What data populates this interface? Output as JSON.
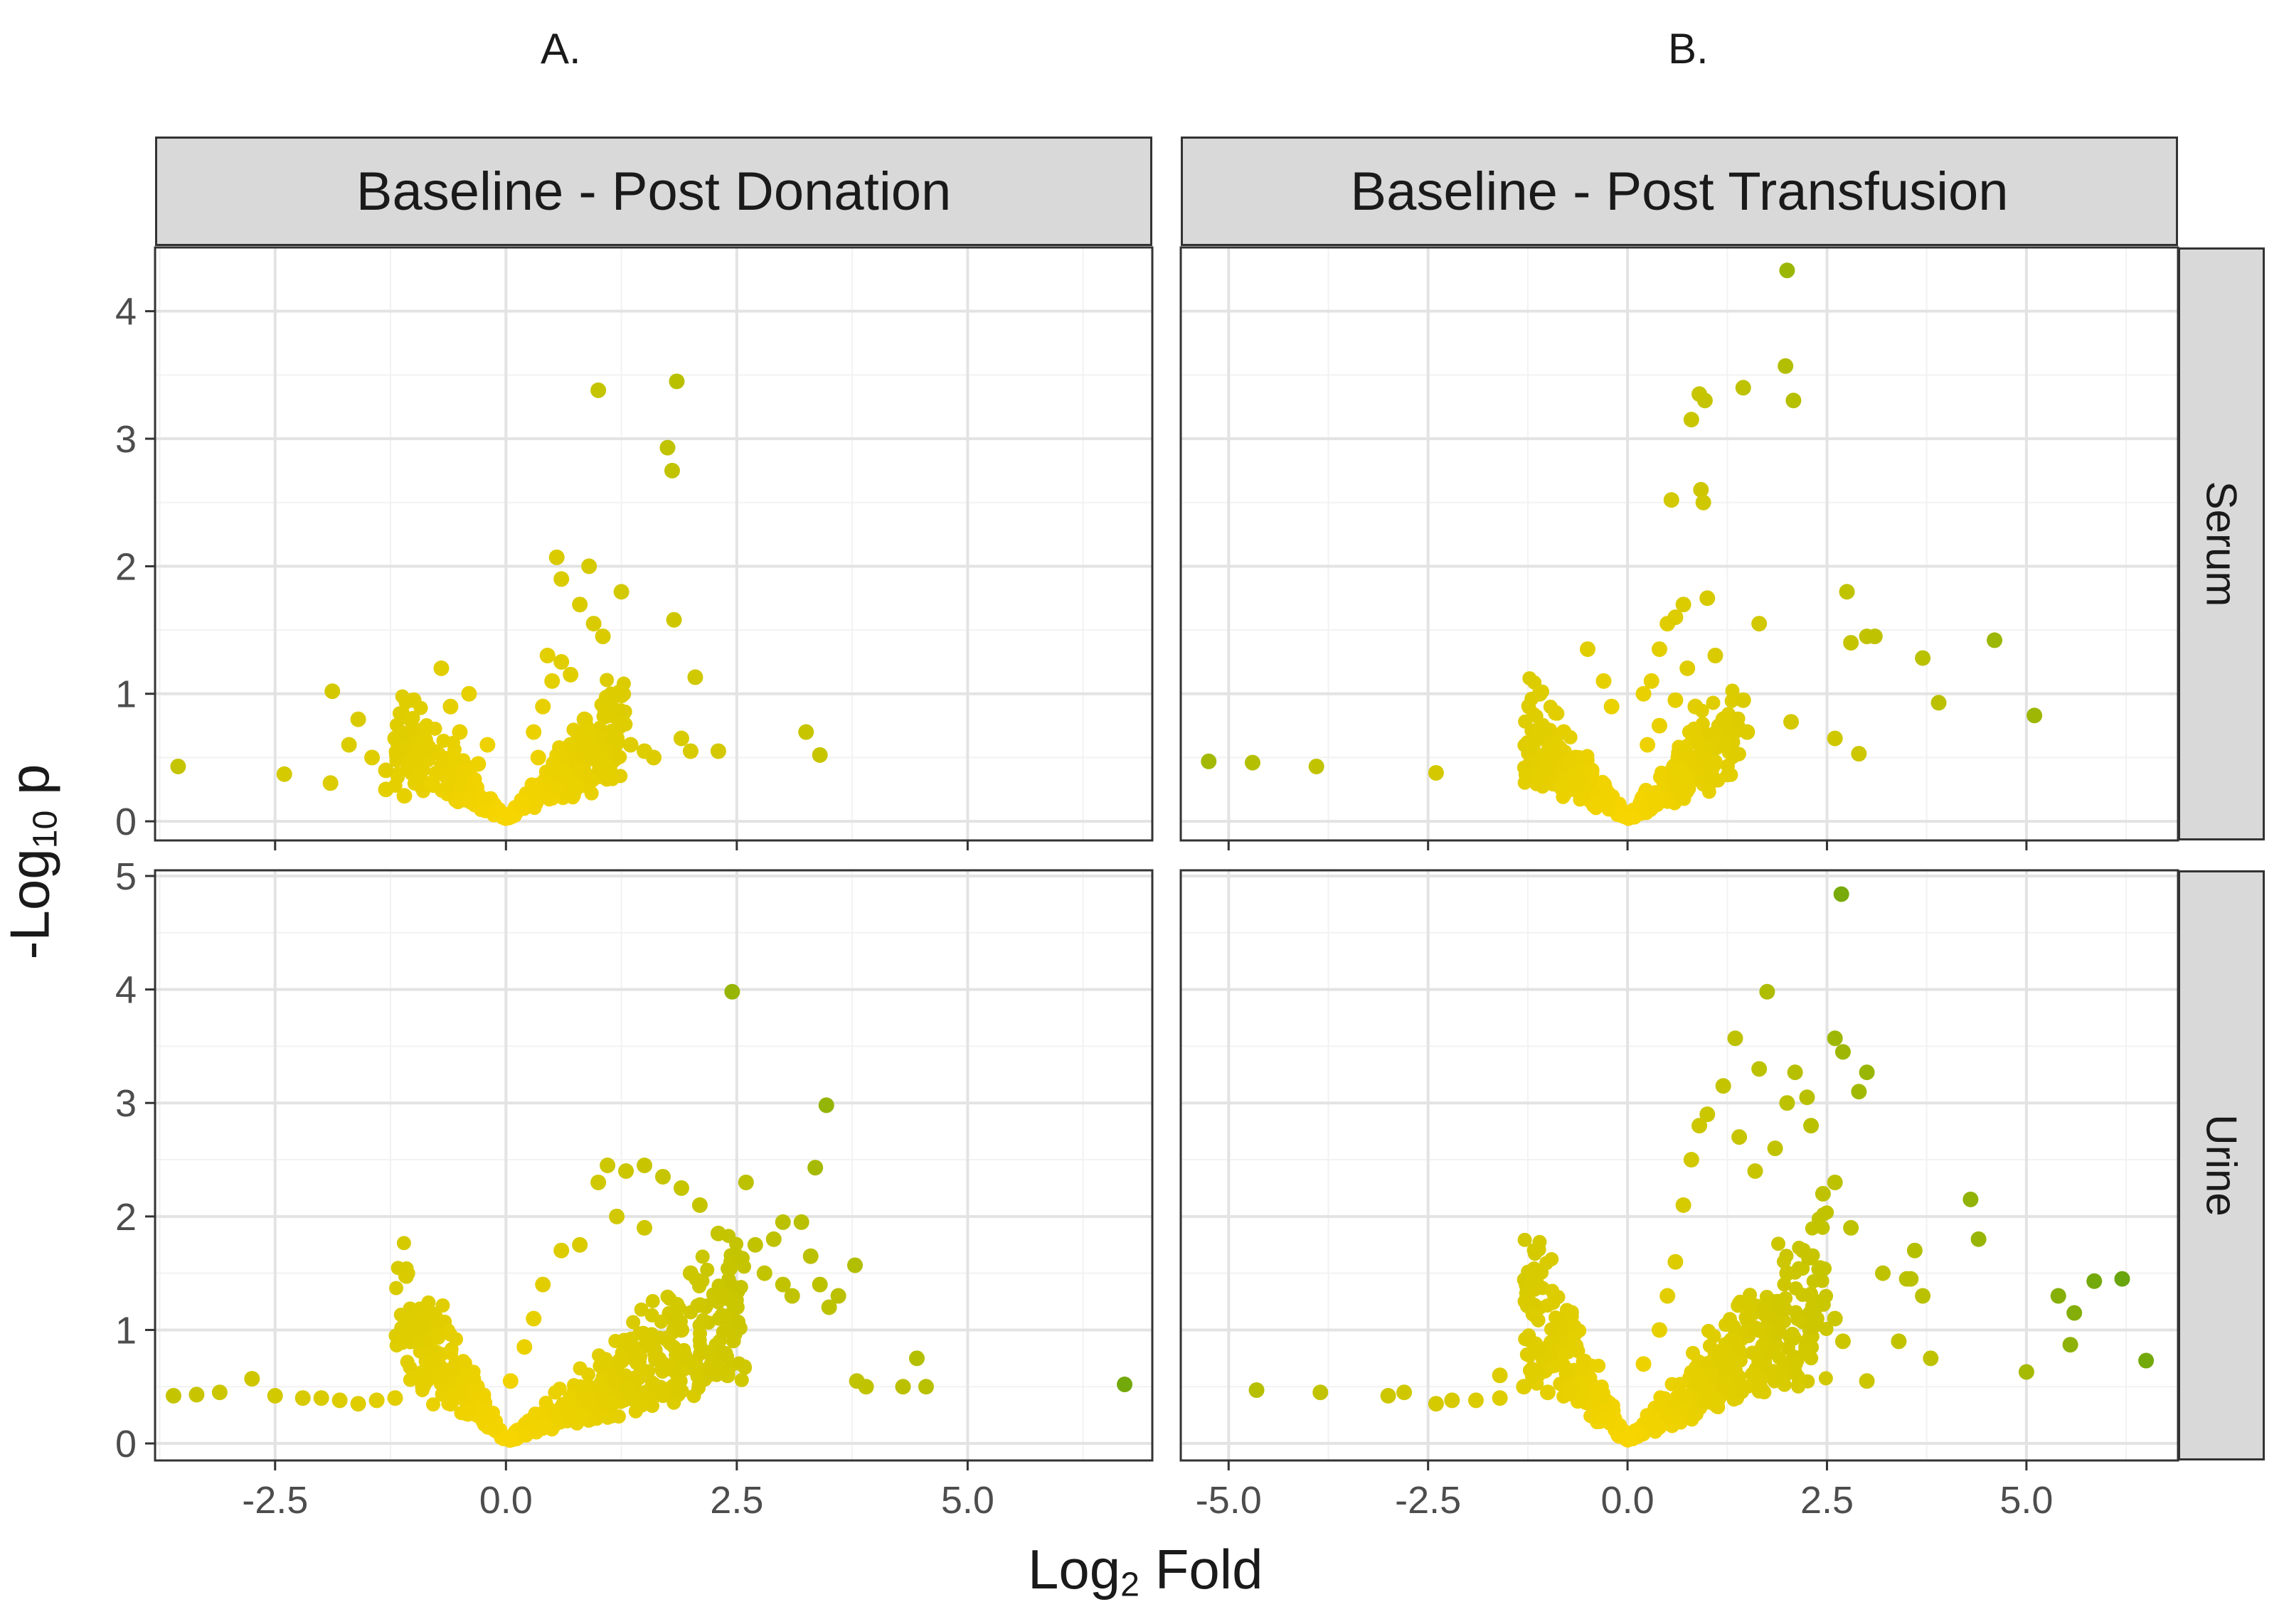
{
  "figure": {
    "panel_labels": [
      "A.",
      "B."
    ],
    "x_title_main": "Log",
    "x_title_sub": "2",
    "x_title_rest": " Fold",
    "y_title_main": "-Log",
    "y_title_sub": "10",
    "y_title_rest": " p"
  },
  "colors": {
    "low": "#f7d500",
    "mid": "#b8c000",
    "high": "#1a8a1a",
    "grid_major": "#e3e3e3",
    "grid_minor": "#f2f2f2",
    "border": "#333333",
    "tick_text": "#4d4d4d"
  },
  "chart_data": [
    {
      "type": "scatter",
      "id": "A-serum",
      "column_title": "Baseline - Post Donation",
      "row_title": "Serum",
      "xlabel": "Log2 Fold",
      "ylabel": "-Log10 p",
      "xlim": [
        -3.8,
        7.0
      ],
      "ylim": [
        -0.15,
        4.5
      ],
      "x_ticks": [
        -2.5,
        0.0,
        2.5,
        5.0
      ],
      "x_tick_labels": [
        "-2.5",
        "0.0",
        "2.5",
        "5.0"
      ],
      "y_ticks": [
        0,
        1,
        2,
        3,
        4
      ],
      "y_tick_labels": [
        "0",
        "1",
        "2",
        "3",
        "4"
      ],
      "x_tick_labels_visible": false,
      "points": [
        [
          -3.55,
          0.43
        ],
        [
          -2.4,
          0.37
        ],
        [
          -1.88,
          1.02
        ],
        [
          -1.9,
          0.3
        ],
        [
          -1.6,
          0.8
        ],
        [
          -1.3,
          0.4
        ],
        [
          -1.2,
          0.65
        ],
        [
          -1.0,
          0.95
        ],
        [
          -0.9,
          0.55
        ],
        [
          -0.8,
          0.3
        ],
        [
          -0.7,
          1.2
        ],
        [
          -0.6,
          0.9
        ],
        [
          -0.5,
          0.7
        ],
        [
          -0.4,
          1.0
        ],
        [
          -0.3,
          0.45
        ],
        [
          -0.2,
          0.6
        ],
        [
          -1.3,
          0.25
        ],
        [
          -1.1,
          0.2
        ],
        [
          -0.95,
          0.35
        ],
        [
          0.3,
          0.7
        ],
        [
          0.45,
          1.3
        ],
        [
          0.55,
          2.07
        ],
        [
          0.6,
          1.9
        ],
        [
          0.8,
          1.7
        ],
        [
          0.9,
          2.0
        ],
        [
          0.95,
          1.55
        ],
        [
          1.0,
          3.38
        ],
        [
          1.05,
          1.45
        ],
        [
          1.25,
          1.8
        ],
        [
          1.35,
          0.6
        ],
        [
          1.5,
          0.55
        ],
        [
          1.6,
          0.5
        ],
        [
          1.75,
          2.93
        ],
        [
          1.8,
          2.75
        ],
        [
          1.82,
          1.58
        ],
        [
          1.85,
          3.45
        ],
        [
          2.05,
          1.13
        ],
        [
          1.9,
          0.65
        ],
        [
          2.0,
          0.55
        ],
        [
          2.3,
          0.55
        ],
        [
          3.25,
          0.7
        ],
        [
          3.4,
          0.52
        ],
        [
          0.35,
          0.5
        ],
        [
          0.5,
          0.4
        ],
        [
          0.7,
          0.6
        ],
        [
          0.85,
          0.8
        ],
        [
          1.1,
          0.55
        ],
        [
          1.2,
          0.65
        ],
        [
          0.4,
          0.9
        ],
        [
          0.5,
          1.1
        ],
        [
          0.6,
          1.25
        ],
        [
          0.7,
          1.15
        ],
        [
          -1.45,
          0.5
        ],
        [
          -1.7,
          0.6
        ]
      ],
      "cluster": {
        "x": [
          -1.2,
          1.3
        ],
        "y": [
          0.0,
          1.25
        ],
        "count": 360
      }
    },
    {
      "type": "scatter",
      "id": "B-serum",
      "column_title": "Baseline - Post Transfusion",
      "row_title": "Serum",
      "xlabel": "Log2 Fold",
      "ylabel": "-Log10 p",
      "xlim": [
        -5.6,
        6.9
      ],
      "ylim": [
        -0.15,
        4.5
      ],
      "x_ticks": [
        -5.0,
        -2.5,
        0.0,
        2.5,
        5.0
      ],
      "x_tick_labels": [
        "-5.0",
        "-2.5",
        "0.0",
        "2.5",
        "5.0"
      ],
      "y_ticks": [
        0,
        1,
        2,
        3,
        4
      ],
      "y_tick_labels": [
        "0",
        "1",
        "2",
        "3",
        "4"
      ],
      "x_tick_labels_visible": false,
      "points": [
        [
          -5.25,
          0.47
        ],
        [
          -4.7,
          0.46
        ],
        [
          -3.9,
          0.43
        ],
        [
          -2.4,
          0.38
        ],
        [
          -1.2,
          0.6
        ],
        [
          -1.1,
          1.0
        ],
        [
          -0.9,
          0.85
        ],
        [
          -0.8,
          0.7
        ],
        [
          -0.5,
          1.35
        ],
        [
          -0.3,
          1.1
        ],
        [
          -0.2,
          0.9
        ],
        [
          0.2,
          1.0
        ],
        [
          0.3,
          1.1
        ],
        [
          0.4,
          1.35
        ],
        [
          0.5,
          1.55
        ],
        [
          0.55,
          2.52
        ],
        [
          0.6,
          1.6
        ],
        [
          0.7,
          1.7
        ],
        [
          0.8,
          3.15
        ],
        [
          0.9,
          3.35
        ],
        [
          0.92,
          2.6
        ],
        [
          0.95,
          2.5
        ],
        [
          0.97,
          3.3
        ],
        [
          1.0,
          1.75
        ],
        [
          1.1,
          1.3
        ],
        [
          1.2,
          0.8
        ],
        [
          1.3,
          0.7
        ],
        [
          1.45,
          0.95
        ],
        [
          1.5,
          0.7
        ],
        [
          1.45,
          3.4
        ],
        [
          1.65,
          1.55
        ],
        [
          2.0,
          4.32
        ],
        [
          1.98,
          3.57
        ],
        [
          2.08,
          3.3
        ],
        [
          2.05,
          0.78
        ],
        [
          2.6,
          0.65
        ],
        [
          2.75,
          1.8
        ],
        [
          2.8,
          1.4
        ],
        [
          2.9,
          0.53
        ],
        [
          3.0,
          1.45
        ],
        [
          3.1,
          1.45
        ],
        [
          3.7,
          1.28
        ],
        [
          3.9,
          0.93
        ],
        [
          4.6,
          1.42
        ],
        [
          5.1,
          0.83
        ],
        [
          0.25,
          0.6
        ],
        [
          0.4,
          0.75
        ],
        [
          0.6,
          0.95
        ],
        [
          0.75,
          1.2
        ],
        [
          0.85,
          0.9
        ],
        [
          1.05,
          0.6
        ],
        [
          -0.65,
          0.5
        ],
        [
          -0.45,
          0.4
        ]
      ],
      "cluster": {
        "x": [
          -1.3,
          1.4
        ],
        "y": [
          0.0,
          1.25
        ],
        "count": 360
      }
    },
    {
      "type": "scatter",
      "id": "A-urine",
      "column_title": "Baseline - Post Donation",
      "row_title": "Urine",
      "xlabel": "Log2 Fold",
      "ylabel": "-Log10 p",
      "xlim": [
        -3.8,
        7.0
      ],
      "ylim": [
        -0.15,
        5.05
      ],
      "x_ticks": [
        -2.5,
        0.0,
        2.5,
        5.0
      ],
      "x_tick_labels": [
        "-2.5",
        "0.0",
        "2.5",
        "5.0"
      ],
      "y_ticks": [
        0,
        1,
        2,
        3,
        4,
        5
      ],
      "y_tick_labels": [
        "0",
        "1",
        "2",
        "3",
        "4",
        "5"
      ],
      "x_tick_labels_visible": true,
      "points": [
        [
          -3.6,
          0.42
        ],
        [
          -3.35,
          0.43
        ],
        [
          -3.1,
          0.45
        ],
        [
          -2.75,
          0.57
        ],
        [
          -2.5,
          0.42
        ],
        [
          -2.2,
          0.4
        ],
        [
          -2.0,
          0.4
        ],
        [
          -1.8,
          0.38
        ],
        [
          -1.6,
          0.35
        ],
        [
          -1.4,
          0.38
        ],
        [
          -1.2,
          0.4
        ],
        [
          -1.0,
          0.58
        ],
        [
          -0.9,
          0.5
        ],
        [
          -0.6,
          0.35
        ],
        [
          -0.5,
          0.45
        ],
        [
          -0.4,
          0.3
        ],
        [
          0.05,
          0.55
        ],
        [
          0.2,
          0.85
        ],
        [
          0.3,
          1.1
        ],
        [
          0.4,
          1.4
        ],
        [
          0.6,
          1.7
        ],
        [
          0.8,
          1.75
        ],
        [
          1.0,
          2.3
        ],
        [
          1.1,
          2.45
        ],
        [
          1.3,
          2.4
        ],
        [
          1.5,
          2.45
        ],
        [
          1.7,
          2.35
        ],
        [
          1.9,
          2.25
        ],
        [
          2.1,
          2.1
        ],
        [
          2.3,
          1.85
        ],
        [
          2.5,
          1.65
        ],
        [
          2.6,
          2.3
        ],
        [
          2.45,
          3.98
        ],
        [
          2.7,
          1.75
        ],
        [
          2.8,
          1.5
        ],
        [
          3.0,
          1.4
        ],
        [
          3.1,
          1.3
        ],
        [
          3.2,
          1.95
        ],
        [
          3.3,
          1.65
        ],
        [
          3.4,
          1.4
        ],
        [
          3.5,
          1.2
        ],
        [
          3.6,
          1.3
        ],
        [
          3.78,
          1.57
        ],
        [
          3.35,
          2.43
        ],
        [
          3.47,
          2.98
        ],
        [
          3.8,
          0.55
        ],
        [
          3.9,
          0.5
        ],
        [
          4.3,
          0.5
        ],
        [
          4.45,
          0.75
        ],
        [
          4.55,
          0.5
        ],
        [
          6.7,
          0.52
        ],
        [
          2.2,
          0.8
        ],
        [
          2.4,
          0.6
        ],
        [
          1.9,
          1.0
        ],
        [
          1.7,
          0.7
        ],
        [
          1.5,
          1.9
        ],
        [
          1.2,
          2.0
        ],
        [
          2.0,
          1.5
        ],
        [
          2.5,
          1.2
        ],
        [
          2.9,
          1.8
        ],
        [
          3.0,
          1.95
        ]
      ],
      "cluster": {
        "x": [
          -1.2,
          2.6
        ],
        "y": [
          0.0,
          2.0
        ],
        "count": 520
      }
    },
    {
      "type": "scatter",
      "id": "B-urine",
      "column_title": "Baseline - Post Transfusion",
      "row_title": "Urine",
      "xlabel": "Log2 Fold",
      "ylabel": "-Log10 p",
      "xlim": [
        -5.6,
        6.9
      ],
      "ylim": [
        -0.15,
        5.05
      ],
      "x_ticks": [
        -5.0,
        -2.5,
        0.0,
        2.5,
        5.0
      ],
      "x_tick_labels": [
        "-5.0",
        "-2.5",
        "0.0",
        "2.5",
        "5.0"
      ],
      "y_ticks": [
        0,
        1,
        2,
        3,
        4,
        5
      ],
      "y_tick_labels": [
        "0",
        "1",
        "2",
        "3",
        "4",
        "5"
      ],
      "x_tick_labels_visible": true,
      "points": [
        [
          -4.65,
          0.47
        ],
        [
          -3.85,
          0.45
        ],
        [
          -3.0,
          0.42
        ],
        [
          -2.8,
          0.45
        ],
        [
          -2.4,
          0.35
        ],
        [
          -2.2,
          0.38
        ],
        [
          -1.9,
          0.38
        ],
        [
          -1.6,
          0.4
        ],
        [
          -1.6,
          0.6
        ],
        [
          -1.3,
          0.5
        ],
        [
          -1.0,
          0.45
        ],
        [
          -0.7,
          0.5
        ],
        [
          0.2,
          0.7
        ],
        [
          0.4,
          1.0
        ],
        [
          0.5,
          1.3
        ],
        [
          0.6,
          1.6
        ],
        [
          0.7,
          2.1
        ],
        [
          0.8,
          2.5
        ],
        [
          0.9,
          2.8
        ],
        [
          1.0,
          2.9
        ],
        [
          1.2,
          3.15
        ],
        [
          1.35,
          3.57
        ],
        [
          1.4,
          2.7
        ],
        [
          1.6,
          2.4
        ],
        [
          1.65,
          3.3
        ],
        [
          1.75,
          3.98
        ],
        [
          1.85,
          2.6
        ],
        [
          2.0,
          3.0
        ],
        [
          2.1,
          3.27
        ],
        [
          2.25,
          3.05
        ],
        [
          2.3,
          2.8
        ],
        [
          2.45,
          2.2
        ],
        [
          2.6,
          3.57
        ],
        [
          2.7,
          3.45
        ],
        [
          2.68,
          4.84
        ],
        [
          2.9,
          3.1
        ],
        [
          3.0,
          3.27
        ],
        [
          2.6,
          2.3
        ],
        [
          2.8,
          1.9
        ],
        [
          2.6,
          1.1
        ],
        [
          2.7,
          0.9
        ],
        [
          3.0,
          0.55
        ],
        [
          3.5,
          1.45
        ],
        [
          3.4,
          0.9
        ],
        [
          3.6,
          1.7
        ],
        [
          3.7,
          1.3
        ],
        [
          3.8,
          0.75
        ],
        [
          4.3,
          2.15
        ],
        [
          4.4,
          1.8
        ],
        [
          5.0,
          0.63
        ],
        [
          5.4,
          1.3
        ],
        [
          5.55,
          0.87
        ],
        [
          5.6,
          1.15
        ],
        [
          5.85,
          1.43
        ],
        [
          6.2,
          1.45
        ],
        [
          6.5,
          0.73
        ],
        [
          2.0,
          1.5
        ],
        [
          2.2,
          1.7
        ],
        [
          2.1,
          0.7
        ],
        [
          1.9,
          1.2
        ],
        [
          3.2,
          1.5
        ],
        [
          3.55,
          1.45
        ]
      ],
      "cluster": {
        "x": [
          -1.3,
          2.5
        ],
        "y": [
          0.0,
          2.3
        ],
        "count": 520
      }
    }
  ]
}
